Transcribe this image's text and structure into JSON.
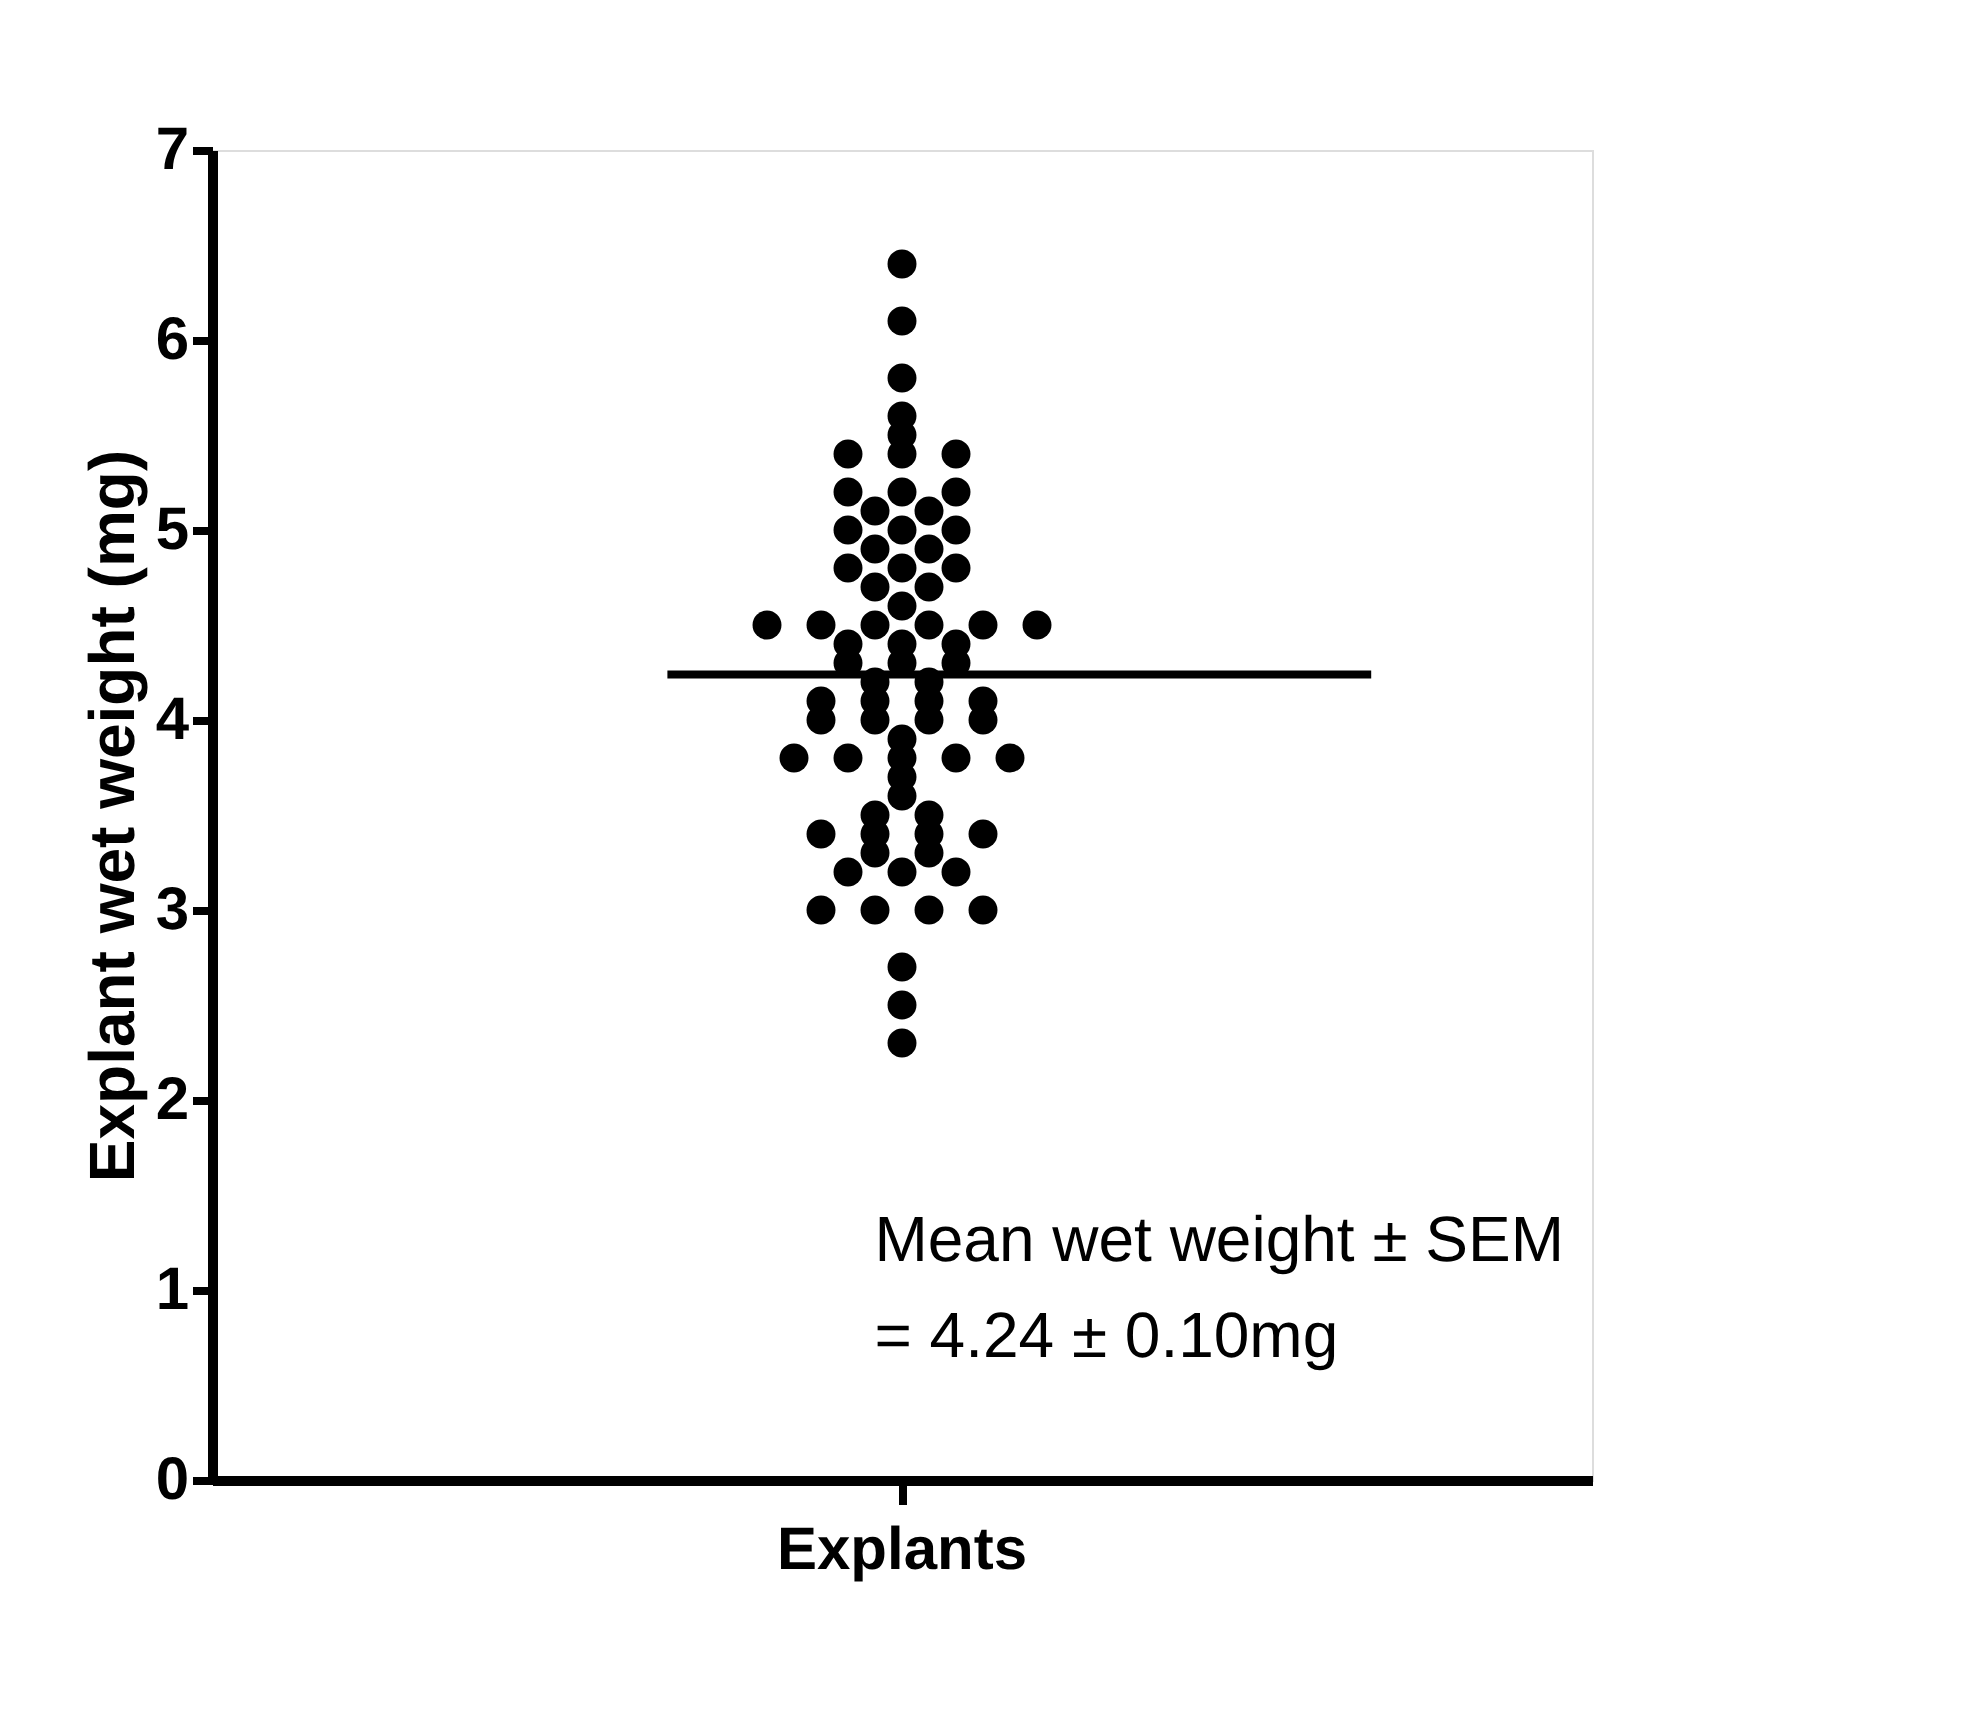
{
  "chart_data": {
    "type": "scatter",
    "ylabel": "Explant wet weight (mg)",
    "categories": [
      "Explants"
    ],
    "series": [
      {
        "color": "#000000",
        "x": [
          "Explants",
          "Explants",
          "Explants",
          "Explants",
          "Explants",
          "Explants",
          "Explants",
          "Explants",
          "Explants",
          "Explants",
          "Explants",
          "Explants",
          "Explants",
          "Explants",
          "Explants",
          "Explants",
          "Explants",
          "Explants",
          "Explants",
          "Explants",
          "Explants",
          "Explants",
          "Explants",
          "Explants",
          "Explants",
          "Explants",
          "Explants",
          "Explants",
          "Explants",
          "Explants",
          "Explants",
          "Explants",
          "Explants",
          "Explants",
          "Explants",
          "Explants",
          "Explants",
          "Explants",
          "Explants",
          "Explants",
          "Explants",
          "Explants",
          "Explants",
          "Explants",
          "Explants",
          "Explants",
          "Explants",
          "Explants",
          "Explants",
          "Explants",
          "Explants",
          "Explants",
          "Explants",
          "Explants",
          "Explants",
          "Explants",
          "Explants",
          "Explants",
          "Explants",
          "Explants",
          "Explants",
          "Explants",
          "Explants",
          "Explants",
          "Explants",
          "Explants",
          "Explants",
          "Explants",
          "Explants",
          "Explants",
          "Explants",
          "Explants"
        ],
        "values": [
          6.4,
          6.1,
          5.8,
          5.6,
          5.5,
          5.4,
          5.4,
          5.4,
          5.2,
          5.2,
          5.2,
          5.1,
          5.1,
          5.0,
          5.0,
          5.0,
          4.9,
          4.9,
          4.8,
          4.8,
          4.8,
          4.7,
          4.7,
          4.6,
          4.5,
          4.5,
          4.5,
          4.5,
          4.5,
          4.5,
          4.4,
          4.4,
          4.4,
          4.3,
          4.3,
          4.3,
          4.2,
          4.2,
          4.1,
          4.1,
          4.1,
          4.1,
          4.0,
          4.0,
          4.0,
          4.0,
          3.9,
          3.8,
          3.8,
          3.8,
          3.8,
          3.8,
          3.7,
          3.6,
          3.5,
          3.5,
          3.4,
          3.4,
          3.4,
          3.4,
          3.3,
          3.3,
          3.2,
          3.2,
          3.2,
          3.0,
          3.0,
          3.0,
          3.0,
          2.7,
          2.5,
          2.3
        ]
      }
    ],
    "ylim": [
      0,
      7
    ],
    "yticks": [
      0,
      1,
      2,
      3,
      4,
      5,
      6,
      7
    ],
    "grid": false,
    "marker": "circle",
    "ref_lines": [
      {
        "axis": "y",
        "value": 4.24,
        "label": null,
        "color": "#000000"
      }
    ],
    "annotations": [
      "Mean wet weight ± SEM",
      "= 4.24 ± 0.10mg"
    ]
  }
}
